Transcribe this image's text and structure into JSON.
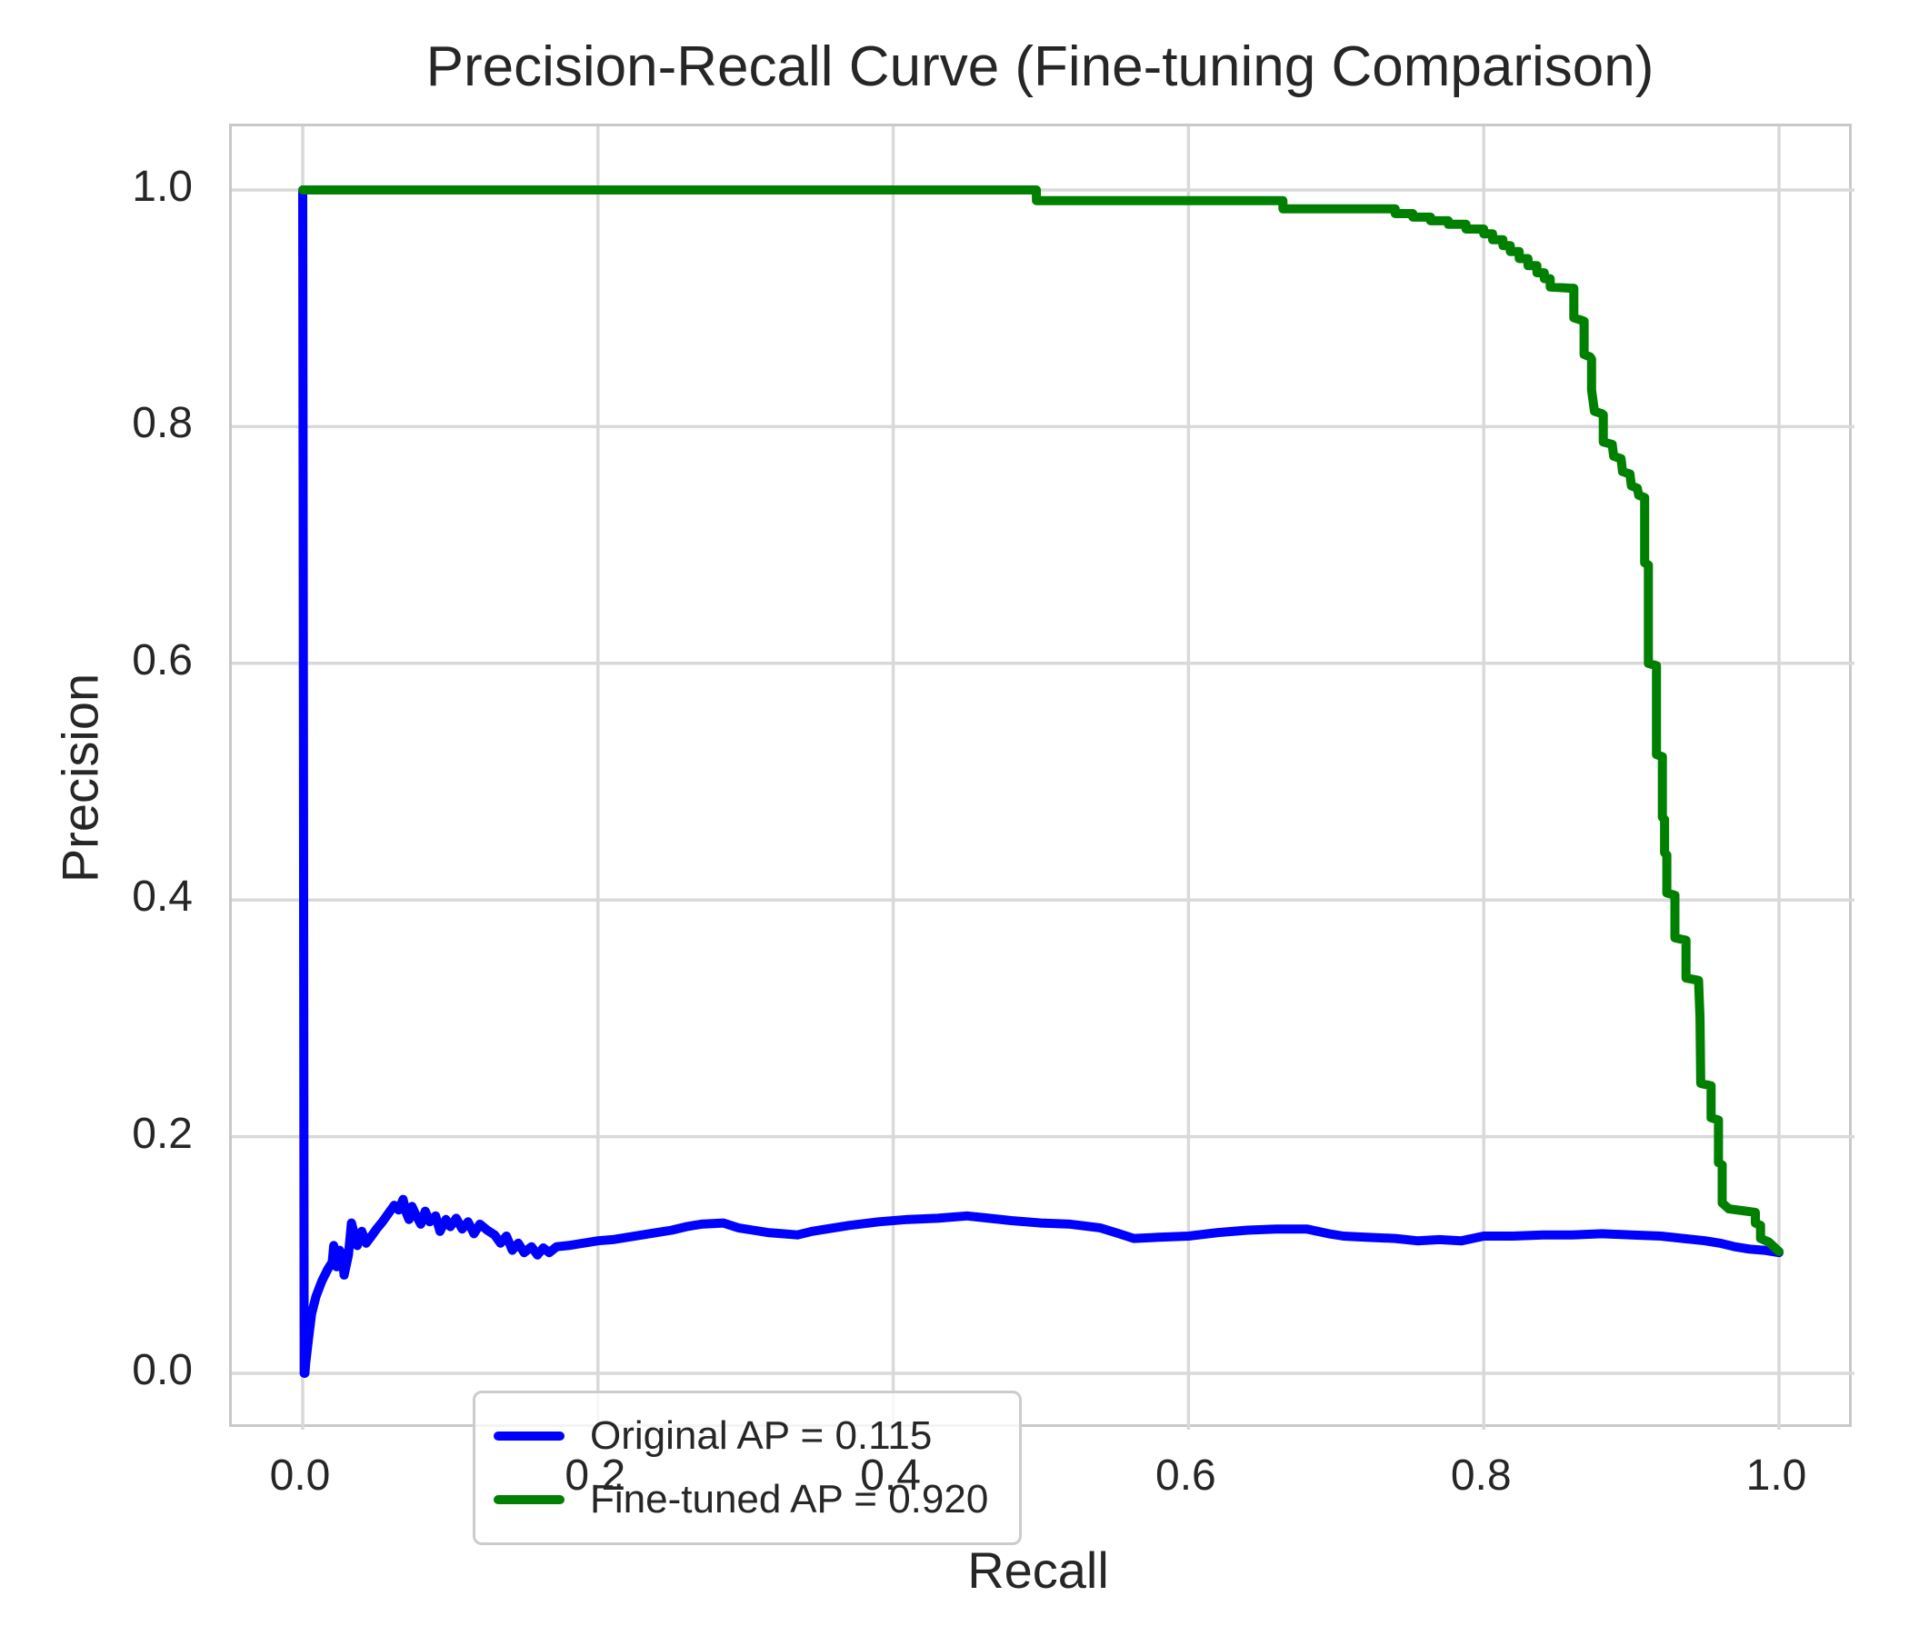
{
  "title": "Precision-Recall Curve (Fine-tuning Comparison)",
  "chart_data": {
    "type": "line",
    "title": "Precision-Recall Curve (Fine-tuning Comparison)",
    "xlabel": "Recall",
    "ylabel": "Precision",
    "xlim": [
      0.0,
      1.0
    ],
    "ylim": [
      0.0,
      1.0
    ],
    "grid": true,
    "grid_color": "#d9d9d9",
    "spine_color": "#c9c9c9",
    "legend_position": "lower left",
    "x_ticks": [
      {
        "label": "0.0",
        "value": 0.0
      },
      {
        "label": "0.2",
        "value": 0.2
      },
      {
        "label": "0.4",
        "value": 0.4
      },
      {
        "label": "0.6",
        "value": 0.6
      },
      {
        "label": "0.8",
        "value": 0.8
      },
      {
        "label": "1.0",
        "value": 1.0
      }
    ],
    "y_ticks": [
      {
        "label": "0.0",
        "value": 0.0
      },
      {
        "label": "0.2",
        "value": 0.2
      },
      {
        "label": "0.4",
        "value": 0.4
      },
      {
        "label": "0.6",
        "value": 0.6
      },
      {
        "label": "0.8",
        "value": 0.8
      },
      {
        "label": "1.0",
        "value": 1.0
      }
    ],
    "series": [
      {
        "name": "Original AP = 0.115",
        "color": "#0000ff",
        "ap": 0.115,
        "points": [
          [
            0.0,
            1.0
          ],
          [
            0.0005,
            0.55
          ],
          [
            0.001,
            0.0
          ],
          [
            0.0015,
            0.0
          ],
          [
            0.002,
            0.008
          ],
          [
            0.004,
            0.03
          ],
          [
            0.006,
            0.05
          ],
          [
            0.009,
            0.065
          ],
          [
            0.013,
            0.078
          ],
          [
            0.017,
            0.088
          ],
          [
            0.02,
            0.094
          ],
          [
            0.021,
            0.108
          ],
          [
            0.023,
            0.09
          ],
          [
            0.025,
            0.104
          ],
          [
            0.027,
            0.1
          ],
          [
            0.028,
            0.083
          ],
          [
            0.031,
            0.1
          ],
          [
            0.033,
            0.127
          ],
          [
            0.035,
            0.118
          ],
          [
            0.037,
            0.108
          ],
          [
            0.04,
            0.12
          ],
          [
            0.043,
            0.11
          ],
          [
            0.046,
            0.115
          ],
          [
            0.05,
            0.122
          ],
          [
            0.054,
            0.128
          ],
          [
            0.058,
            0.135
          ],
          [
            0.062,
            0.142
          ],
          [
            0.065,
            0.138
          ],
          [
            0.068,
            0.147
          ],
          [
            0.07,
            0.136
          ],
          [
            0.072,
            0.13
          ],
          [
            0.074,
            0.141
          ],
          [
            0.077,
            0.133
          ],
          [
            0.08,
            0.126
          ],
          [
            0.083,
            0.137
          ],
          [
            0.086,
            0.128
          ],
          [
            0.09,
            0.133
          ],
          [
            0.093,
            0.12
          ],
          [
            0.097,
            0.13
          ],
          [
            0.1,
            0.124
          ],
          [
            0.104,
            0.131
          ],
          [
            0.108,
            0.122
          ],
          [
            0.112,
            0.128
          ],
          [
            0.116,
            0.118
          ],
          [
            0.12,
            0.126
          ],
          [
            0.125,
            0.121
          ],
          [
            0.13,
            0.117
          ],
          [
            0.134,
            0.11
          ],
          [
            0.138,
            0.116
          ],
          [
            0.142,
            0.104
          ],
          [
            0.146,
            0.11
          ],
          [
            0.15,
            0.102
          ],
          [
            0.155,
            0.107
          ],
          [
            0.159,
            0.1
          ],
          [
            0.163,
            0.106
          ],
          [
            0.167,
            0.102
          ],
          [
            0.172,
            0.107
          ],
          [
            0.18,
            0.108
          ],
          [
            0.19,
            0.11
          ],
          [
            0.2,
            0.112
          ],
          [
            0.21,
            0.113
          ],
          [
            0.22,
            0.115
          ],
          [
            0.23,
            0.117
          ],
          [
            0.24,
            0.119
          ],
          [
            0.25,
            0.121
          ],
          [
            0.26,
            0.124
          ],
          [
            0.27,
            0.126
          ],
          [
            0.285,
            0.127
          ],
          [
            0.295,
            0.123
          ],
          [
            0.305,
            0.121
          ],
          [
            0.315,
            0.119
          ],
          [
            0.325,
            0.118
          ],
          [
            0.335,
            0.117
          ],
          [
            0.345,
            0.12
          ],
          [
            0.355,
            0.122
          ],
          [
            0.37,
            0.125
          ],
          [
            0.39,
            0.128
          ],
          [
            0.41,
            0.13
          ],
          [
            0.43,
            0.131
          ],
          [
            0.45,
            0.133
          ],
          [
            0.465,
            0.131
          ],
          [
            0.48,
            0.129
          ],
          [
            0.5,
            0.127
          ],
          [
            0.52,
            0.126
          ],
          [
            0.54,
            0.123
          ],
          [
            0.553,
            0.118
          ],
          [
            0.563,
            0.114
          ],
          [
            0.58,
            0.115
          ],
          [
            0.6,
            0.116
          ],
          [
            0.62,
            0.119
          ],
          [
            0.64,
            0.121
          ],
          [
            0.66,
            0.122
          ],
          [
            0.68,
            0.122
          ],
          [
            0.695,
            0.118
          ],
          [
            0.705,
            0.116
          ],
          [
            0.72,
            0.115
          ],
          [
            0.74,
            0.114
          ],
          [
            0.755,
            0.112
          ],
          [
            0.77,
            0.113
          ],
          [
            0.785,
            0.112
          ],
          [
            0.8,
            0.116
          ],
          [
            0.82,
            0.116
          ],
          [
            0.84,
            0.117
          ],
          [
            0.86,
            0.117
          ],
          [
            0.88,
            0.118
          ],
          [
            0.9,
            0.117
          ],
          [
            0.92,
            0.116
          ],
          [
            0.935,
            0.114
          ],
          [
            0.95,
            0.112
          ],
          [
            0.96,
            0.11
          ],
          [
            0.97,
            0.107
          ],
          [
            0.98,
            0.105
          ],
          [
            0.99,
            0.104
          ],
          [
            1.0,
            0.102
          ]
        ]
      },
      {
        "name": "Fine-tuned AP = 0.920",
        "color": "#008000",
        "ap": 0.92,
        "points": [
          [
            0.0,
            1.0
          ],
          [
            0.497,
            1.0
          ],
          [
            0.497,
            0.991
          ],
          [
            0.664,
            0.991
          ],
          [
            0.664,
            0.984
          ],
          [
            0.74,
            0.984
          ],
          [
            0.74,
            0.98
          ],
          [
            0.752,
            0.98
          ],
          [
            0.752,
            0.977
          ],
          [
            0.764,
            0.977
          ],
          [
            0.764,
            0.974
          ],
          [
            0.776,
            0.974
          ],
          [
            0.776,
            0.971
          ],
          [
            0.788,
            0.971
          ],
          [
            0.788,
            0.967
          ],
          [
            0.8,
            0.967
          ],
          [
            0.8,
            0.963
          ],
          [
            0.806,
            0.963
          ],
          [
            0.806,
            0.958
          ],
          [
            0.813,
            0.958
          ],
          [
            0.813,
            0.953
          ],
          [
            0.818,
            0.953
          ],
          [
            0.818,
            0.948
          ],
          [
            0.824,
            0.948
          ],
          [
            0.824,
            0.942
          ],
          [
            0.83,
            0.942
          ],
          [
            0.83,
            0.936
          ],
          [
            0.836,
            0.936
          ],
          [
            0.836,
            0.93
          ],
          [
            0.841,
            0.93
          ],
          [
            0.841,
            0.925
          ],
          [
            0.845,
            0.925
          ],
          [
            0.845,
            0.918
          ],
          [
            0.859,
            0.917
          ],
          [
            0.861,
            0.917
          ],
          [
            0.861,
            0.892
          ],
          [
            0.866,
            0.89
          ],
          [
            0.868,
            0.889
          ],
          [
            0.868,
            0.861
          ],
          [
            0.872,
            0.859
          ],
          [
            0.873,
            0.857
          ],
          [
            0.873,
            0.831
          ],
          [
            0.874,
            0.822
          ],
          [
            0.875,
            0.813
          ],
          [
            0.88,
            0.811
          ],
          [
            0.881,
            0.81
          ],
          [
            0.881,
            0.787
          ],
          [
            0.887,
            0.785
          ],
          [
            0.888,
            0.775
          ],
          [
            0.893,
            0.773
          ],
          [
            0.894,
            0.762
          ],
          [
            0.899,
            0.76
          ],
          [
            0.9,
            0.75
          ],
          [
            0.904,
            0.748
          ],
          [
            0.905,
            0.742
          ],
          [
            0.909,
            0.74
          ],
          [
            0.909,
            0.685
          ],
          [
            0.9115,
            0.683
          ],
          [
            0.9115,
            0.6
          ],
          [
            0.917,
            0.598
          ],
          [
            0.917,
            0.523
          ],
          [
            0.921,
            0.521
          ],
          [
            0.921,
            0.47
          ],
          [
            0.9225,
            0.468
          ],
          [
            0.9225,
            0.44
          ],
          [
            0.924,
            0.438
          ],
          [
            0.924,
            0.406
          ],
          [
            0.9295,
            0.404
          ],
          [
            0.9295,
            0.368
          ],
          [
            0.937,
            0.366
          ],
          [
            0.937,
            0.334
          ],
          [
            0.9455,
            0.332
          ],
          [
            0.9465,
            0.3
          ],
          [
            0.947,
            0.245
          ],
          [
            0.954,
            0.243
          ],
          [
            0.954,
            0.216
          ],
          [
            0.959,
            0.214
          ],
          [
            0.959,
            0.178
          ],
          [
            0.9615,
            0.176
          ],
          [
            0.9615,
            0.144
          ],
          [
            0.966,
            0.139
          ],
          [
            0.984,
            0.136
          ],
          [
            0.984,
            0.127
          ],
          [
            0.9875,
            0.125
          ],
          [
            0.9875,
            0.114
          ],
          [
            0.993,
            0.111
          ],
          [
            1.0,
            0.103
          ]
        ]
      }
    ]
  },
  "legend": {
    "items": [
      {
        "label": "Original AP = 0.115",
        "color": "#0000ff"
      },
      {
        "label": "Fine-tuned AP = 0.920",
        "color": "#008000"
      }
    ]
  }
}
